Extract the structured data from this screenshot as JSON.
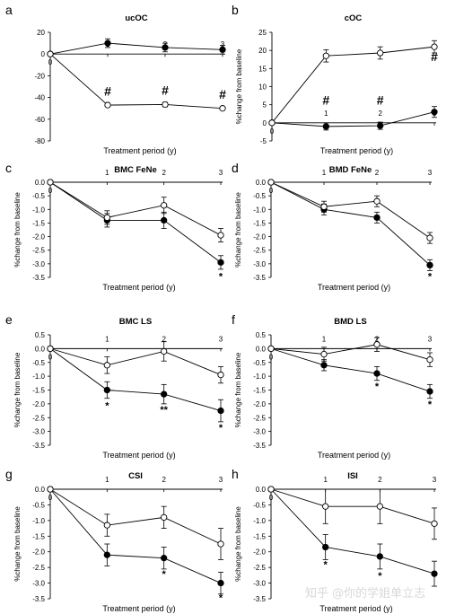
{
  "chart_data": [
    {
      "type": "line",
      "label": "a",
      "title": "ucOC",
      "xlabel": "Treatment period (y)",
      "ylabel": "",
      "ylim": [
        -80,
        20
      ],
      "yticks": [
        20,
        0,
        -20,
        -40,
        -60,
        -80
      ],
      "ytick_labels": [
        "20",
        "0",
        "-20",
        "-40",
        "-60",
        "-80"
      ],
      "xticks": [
        0,
        1,
        2,
        3
      ],
      "xtick_labels": [
        "0",
        "1",
        "2",
        "3"
      ],
      "series": [
        {
          "marker": "filled",
          "x": [
            0,
            1,
            2,
            3
          ],
          "y": [
            0,
            10,
            6,
            4
          ],
          "err": [
            0,
            4,
            4,
            4
          ]
        },
        {
          "marker": "open",
          "x": [
            0,
            1,
            2,
            3
          ],
          "y": [
            0,
            -47,
            -46.5,
            -50
          ],
          "err": [
            0,
            1.5,
            2,
            1.5
          ]
        }
      ],
      "annotations": [
        {
          "text": "#",
          "x": 1,
          "y": -35
        },
        {
          "text": "#",
          "x": 2,
          "y": -34
        },
        {
          "text": "#",
          "x": 3,
          "y": -38
        }
      ]
    },
    {
      "type": "line",
      "label": "b",
      "title": "cOC",
      "xlabel": "Treatment period (y)",
      "ylabel": "%change from baseline",
      "ylim": [
        -5,
        25
      ],
      "yticks": [
        25,
        20,
        15,
        10,
        5,
        0,
        -5
      ],
      "ytick_labels": [
        "25",
        "20",
        "15",
        "10",
        "5",
        "0",
        "-5"
      ],
      "xticks": [
        0,
        1,
        2,
        3
      ],
      "xtick_labels": [
        "0",
        "1",
        "2",
        "3"
      ],
      "series": [
        {
          "marker": "filled",
          "x": [
            0,
            1,
            2,
            3
          ],
          "y": [
            0,
            -1,
            -0.8,
            3
          ],
          "err": [
            0,
            1,
            1,
            1.5
          ]
        },
        {
          "marker": "open",
          "x": [
            0,
            1,
            2,
            3
          ],
          "y": [
            0,
            18.5,
            19.3,
            21
          ],
          "err": [
            0,
            1.7,
            1.7,
            1.7
          ]
        }
      ],
      "annotations": [
        {
          "text": "#",
          "x": 1,
          "y": 6
        },
        {
          "text": "#",
          "x": 2,
          "y": 6
        },
        {
          "text": "#",
          "x": 3,
          "y": 18
        }
      ]
    },
    {
      "type": "line",
      "label": "c",
      "title": "BMC FeNe",
      "xlabel": "Treatment period (y)",
      "ylabel": "%change from baseline",
      "ylim": [
        -3.5,
        0
      ],
      "yticks": [
        0,
        -0.5,
        -1,
        -1.5,
        -2,
        -2.5,
        -3,
        -3.5
      ],
      "ytick_labels": [
        "0.0",
        "-0.5",
        "-1.0",
        "-1.5",
        "-2.0",
        "-2.5",
        "-3.0",
        "-3.5"
      ],
      "xticks": [
        0,
        1,
        2,
        3
      ],
      "xtick_labels": [
        "0",
        "1",
        "2",
        "3"
      ],
      "series": [
        {
          "marker": "filled",
          "x": [
            0,
            1,
            2,
            3
          ],
          "y": [
            0,
            -1.4,
            -1.4,
            -2.95
          ],
          "err": [
            0,
            0.25,
            0.3,
            0.25
          ]
        },
        {
          "marker": "open",
          "x": [
            0,
            1,
            2,
            3
          ],
          "y": [
            0,
            -1.3,
            -0.85,
            -1.95
          ],
          "err": [
            0,
            0.25,
            0.3,
            0.25
          ]
        }
      ],
      "annotations": [
        {
          "text": "*",
          "x": 3,
          "y": -3.45
        }
      ]
    },
    {
      "type": "line",
      "label": "d",
      "title": "BMD FeNe",
      "xlabel": "Treatment period (y)",
      "ylabel": "%change from baseline",
      "ylim": [
        -3.5,
        0
      ],
      "yticks": [
        0,
        -0.5,
        -1,
        -1.5,
        -2,
        -2.5,
        -3,
        -3.5
      ],
      "ytick_labels": [
        "0.0",
        "-0.5",
        "-1.0",
        "-1.5",
        "-2.0",
        "-2.5",
        "-3.0",
        "-3.5"
      ],
      "xticks": [
        0,
        1,
        2,
        3
      ],
      "xtick_labels": [
        "0",
        "1",
        "2",
        "3"
      ],
      "series": [
        {
          "marker": "filled",
          "x": [
            0,
            1,
            2,
            3
          ],
          "y": [
            0,
            -1.0,
            -1.3,
            -3.05
          ],
          "err": [
            0,
            0.2,
            0.2,
            0.2
          ]
        },
        {
          "marker": "open",
          "x": [
            0,
            1,
            2,
            3
          ],
          "y": [
            0,
            -0.9,
            -0.7,
            -2.05
          ],
          "err": [
            0,
            0.2,
            0.2,
            0.2
          ]
        }
      ],
      "annotations": [
        {
          "text": "*",
          "x": 3,
          "y": -3.45
        }
      ]
    },
    {
      "type": "line",
      "label": "e",
      "title": "BMC LS",
      "xlabel": "Treatment period (y)",
      "ylabel": "%change from baseline",
      "ylim": [
        -3.5,
        0.5
      ],
      "yticks": [
        0.5,
        0,
        -0.5,
        -1,
        -1.5,
        -2,
        -2.5,
        -3,
        -3.5
      ],
      "ytick_labels": [
        "0.5",
        "0.0",
        "-0.5",
        "-1.0",
        "-1.5",
        "-2.0",
        "-2.5",
        "-3.0",
        "-3.5"
      ],
      "xticks": [
        0,
        1,
        2,
        3
      ],
      "xtick_labels": [
        "0",
        "1",
        "2",
        "3"
      ],
      "series": [
        {
          "marker": "filled",
          "x": [
            0,
            1,
            2,
            3
          ],
          "y": [
            0,
            -1.5,
            -1.65,
            -2.25
          ],
          "err": [
            0,
            0.3,
            0.35,
            0.4
          ]
        },
        {
          "marker": "open",
          "x": [
            0,
            1,
            2,
            3
          ],
          "y": [
            0,
            -0.6,
            -0.1,
            -0.95
          ],
          "err": [
            0,
            0.3,
            0.35,
            0.3
          ]
        }
      ],
      "annotations": [
        {
          "text": "*",
          "x": 1,
          "y": -2.05
        },
        {
          "text": "**",
          "x": 2,
          "y": -2.2
        },
        {
          "text": "*",
          "x": 3,
          "y": -2.85
        }
      ]
    },
    {
      "type": "line",
      "label": "f",
      "title": "BMD LS",
      "xlabel": "Treatment period (y)",
      "ylabel": "%change from baseline",
      "ylim": [
        -3.5,
        0.5
      ],
      "yticks": [
        0.5,
        0,
        -0.5,
        -1,
        -1.5,
        -2,
        -2.5,
        -3,
        -3.5
      ],
      "ytick_labels": [
        "0.5",
        "0.0",
        "-0.5",
        "-1.0",
        "-1.5",
        "-2.0",
        "-2.5",
        "-3.0",
        "-3.5"
      ],
      "xticks": [
        0,
        1,
        2,
        3
      ],
      "xtick_labels": [
        "0",
        "1",
        "2",
        "3"
      ],
      "series": [
        {
          "marker": "filled",
          "x": [
            0,
            1,
            2,
            3
          ],
          "y": [
            0,
            -0.6,
            -0.9,
            -1.55
          ],
          "err": [
            0,
            0.2,
            0.25,
            0.25
          ]
        },
        {
          "marker": "open",
          "x": [
            0,
            1,
            2,
            3
          ],
          "y": [
            0,
            -0.2,
            0.15,
            -0.4
          ],
          "err": [
            0,
            0.25,
            0.25,
            0.25
          ]
        }
      ],
      "annotations": [
        {
          "text": "*",
          "x": 2,
          "y": -1.35
        },
        {
          "text": "*",
          "x": 3,
          "y": -2.0
        }
      ]
    },
    {
      "type": "line",
      "label": "g",
      "title": "CSI",
      "xlabel": "Treatment period (y)",
      "ylabel": "%change from baseline",
      "ylim": [
        -3.5,
        0
      ],
      "yticks": [
        0,
        -0.5,
        -1,
        -1.5,
        -2,
        -2.5,
        -3,
        -3.5
      ],
      "ytick_labels": [
        "0.0",
        "-0.5",
        "-1.0",
        "-1.5",
        "-2.0",
        "-2.5",
        "-3.0",
        "-3.5"
      ],
      "xticks": [
        0,
        1,
        2,
        3
      ],
      "xtick_labels": [
        "0",
        "1",
        "2",
        "3"
      ],
      "series": [
        {
          "marker": "filled",
          "x": [
            0,
            1,
            2,
            3
          ],
          "y": [
            0,
            -2.1,
            -2.2,
            -3.0
          ],
          "err": [
            0,
            0.35,
            0.35,
            0.35
          ]
        },
        {
          "marker": "open",
          "x": [
            0,
            1,
            2,
            3
          ],
          "y": [
            0,
            -1.15,
            -0.9,
            -1.75
          ],
          "err": [
            0,
            0.35,
            0.35,
            0.5
          ]
        }
      ],
      "annotations": [
        {
          "text": "*",
          "x": 2,
          "y": -2.7
        },
        {
          "text": "*",
          "x": 3,
          "y": -3.45
        }
      ]
    },
    {
      "type": "line",
      "label": "h",
      "title": "ISI",
      "xlabel": "Treatment period (y)",
      "ylabel": "%change from baseline",
      "ylim": [
        -3.5,
        0
      ],
      "yticks": [
        0,
        -0.5,
        -1,
        -1.5,
        -2,
        -2.5,
        -3,
        -3.5
      ],
      "ytick_labels": [
        "0.0",
        "-0.5",
        "-1.0",
        "-1.5",
        "-2.0",
        "-2.5",
        "-3.0",
        "-3.5"
      ],
      "xticks": [
        0,
        1,
        2,
        3
      ],
      "xtick_labels": [
        "0",
        "1",
        "2",
        "3"
      ],
      "series": [
        {
          "marker": "filled",
          "x": [
            0,
            1,
            2,
            3
          ],
          "y": [
            0,
            -1.85,
            -2.15,
            -2.7
          ],
          "err": [
            0,
            0.4,
            0.4,
            0.4
          ]
        },
        {
          "marker": "open",
          "x": [
            0,
            1,
            2,
            3
          ],
          "y": [
            0,
            -0.55,
            -0.55,
            -1.1
          ],
          "err": [
            0,
            0.55,
            0.55,
            0.5
          ]
        }
      ],
      "annotations": [
        {
          "text": "*",
          "x": 1,
          "y": -2.4
        },
        {
          "text": "*",
          "x": 2,
          "y": -2.75
        }
      ]
    }
  ],
  "watermark": "知乎 @你的学姐单立志"
}
